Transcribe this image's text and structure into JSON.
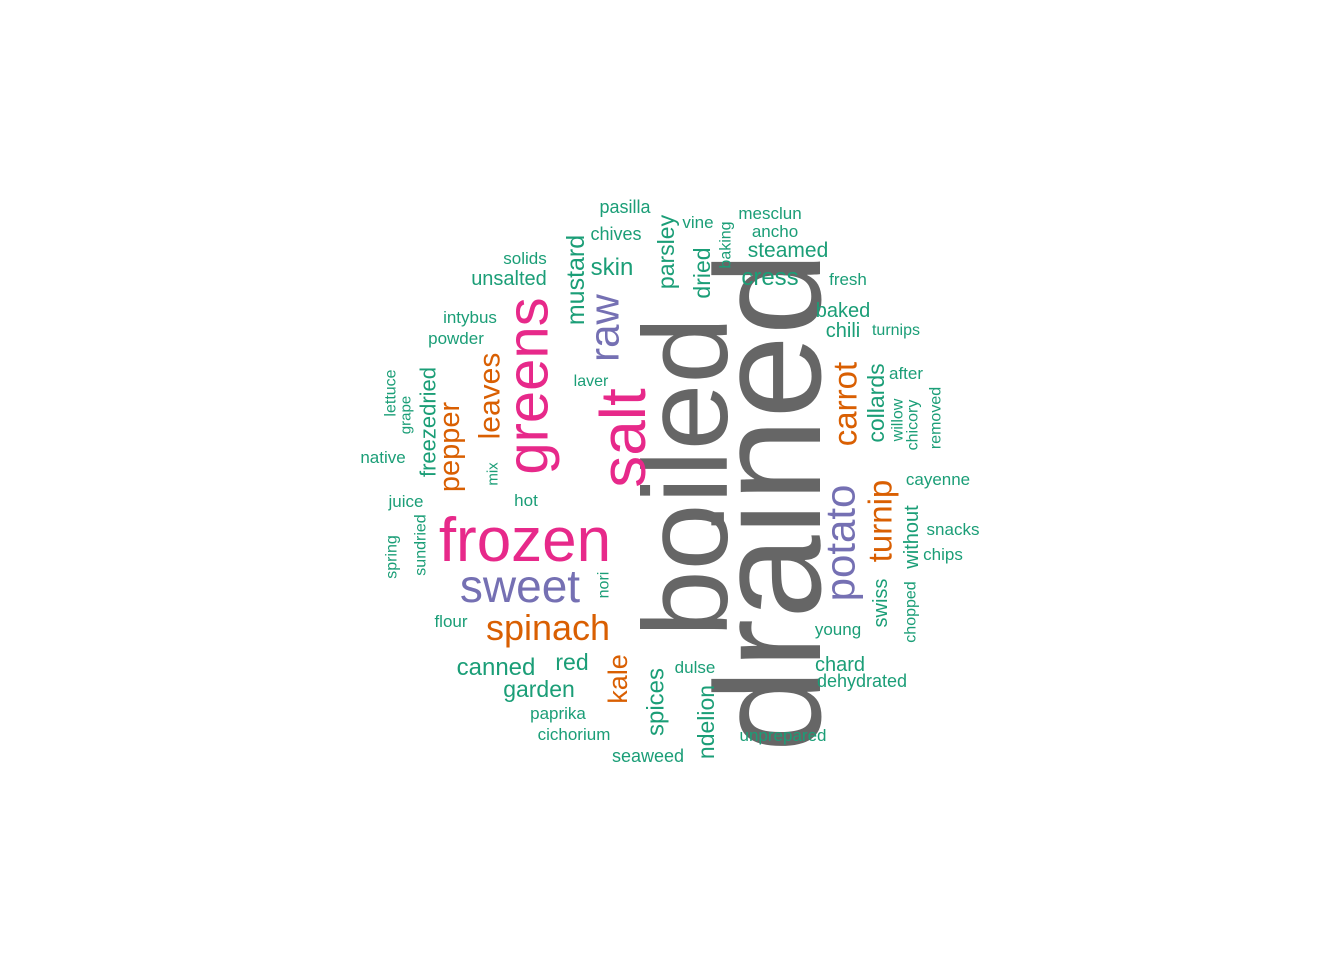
{
  "palette": {
    "grey": "#666666",
    "magenta": "#e7298a",
    "purple": "#7570b3",
    "orange": "#d95f02",
    "teal": "#1b9e77"
  },
  "words": [
    {
      "text": "drained",
      "color": "grey"
    },
    {
      "text": "boiled",
      "color": "grey"
    },
    {
      "text": "frozen",
      "color": "magenta"
    },
    {
      "text": "salt",
      "color": "magenta"
    },
    {
      "text": "greens",
      "color": "magenta"
    },
    {
      "text": "sweet",
      "color": "purple"
    },
    {
      "text": "raw",
      "color": "purple"
    },
    {
      "text": "potato",
      "color": "purple"
    },
    {
      "text": "spinach",
      "color": "orange"
    },
    {
      "text": "carrot",
      "color": "orange"
    },
    {
      "text": "turnip",
      "color": "orange"
    },
    {
      "text": "leaves",
      "color": "orange"
    },
    {
      "text": "pepper",
      "color": "orange"
    },
    {
      "text": "kale",
      "color": "orange"
    },
    {
      "text": "mustard",
      "color": "teal"
    },
    {
      "text": "skin",
      "color": "teal"
    },
    {
      "text": "parsley",
      "color": "teal"
    },
    {
      "text": "dried",
      "color": "teal"
    },
    {
      "text": "cress",
      "color": "teal"
    },
    {
      "text": "steamed",
      "color": "teal"
    },
    {
      "text": "collards",
      "color": "teal"
    },
    {
      "text": "freezedried",
      "color": "teal"
    },
    {
      "text": "canned",
      "color": "teal"
    },
    {
      "text": "garden",
      "color": "teal"
    },
    {
      "text": "red",
      "color": "teal"
    },
    {
      "text": "spices",
      "color": "teal"
    },
    {
      "text": "ndelion",
      "color": "teal"
    },
    {
      "text": "unsalted",
      "color": "teal"
    },
    {
      "text": "baked",
      "color": "teal"
    },
    {
      "text": "chili",
      "color": "teal"
    },
    {
      "text": "chard",
      "color": "teal"
    },
    {
      "text": "swiss",
      "color": "teal"
    },
    {
      "text": "without",
      "color": "teal"
    },
    {
      "text": "pasilla",
      "color": "teal"
    },
    {
      "text": "chives",
      "color": "teal"
    },
    {
      "text": "vine",
      "color": "teal"
    },
    {
      "text": "mesclun",
      "color": "teal"
    },
    {
      "text": "ancho",
      "color": "teal"
    },
    {
      "text": "baking",
      "color": "teal"
    },
    {
      "text": "solids",
      "color": "teal"
    },
    {
      "text": "fresh",
      "color": "teal"
    },
    {
      "text": "intybus",
      "color": "teal"
    },
    {
      "text": "powder",
      "color": "teal"
    },
    {
      "text": "turnips",
      "color": "teal"
    },
    {
      "text": "laver",
      "color": "teal"
    },
    {
      "text": "after",
      "color": "teal"
    },
    {
      "text": "lettuce",
      "color": "teal"
    },
    {
      "text": "grape",
      "color": "teal"
    },
    {
      "text": "willow",
      "color": "teal"
    },
    {
      "text": "chicory",
      "color": "teal"
    },
    {
      "text": "removed",
      "color": "teal"
    },
    {
      "text": "native",
      "color": "teal"
    },
    {
      "text": "mix",
      "color": "teal"
    },
    {
      "text": "juice",
      "color": "teal"
    },
    {
      "text": "hot",
      "color": "teal"
    },
    {
      "text": "cayenne",
      "color": "teal"
    },
    {
      "text": "snacks",
      "color": "teal"
    },
    {
      "text": "spring",
      "color": "teal"
    },
    {
      "text": "sundried",
      "color": "teal"
    },
    {
      "text": "chips",
      "color": "teal"
    },
    {
      "text": "nori",
      "color": "teal"
    },
    {
      "text": "flour",
      "color": "teal"
    },
    {
      "text": "young",
      "color": "teal"
    },
    {
      "text": "chopped",
      "color": "teal"
    },
    {
      "text": "dulse",
      "color": "teal"
    },
    {
      "text": "dehydrated",
      "color": "teal"
    },
    {
      "text": "paprika",
      "color": "teal"
    },
    {
      "text": "cichorium",
      "color": "teal"
    },
    {
      "text": "unprepared",
      "color": "teal"
    },
    {
      "text": "seaweed",
      "color": "teal"
    }
  ]
}
